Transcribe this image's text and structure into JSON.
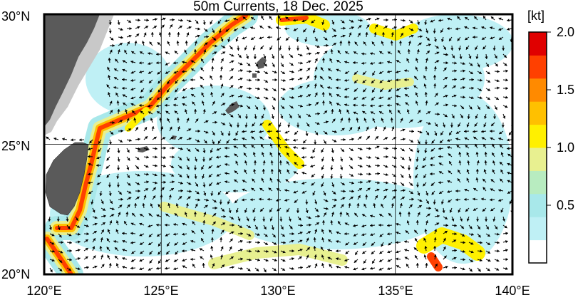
{
  "title": "50m Currents, 18 Dec. 2025",
  "map": {
    "lon_range": [
      120,
      140
    ],
    "lat_range": [
      20,
      30
    ],
    "lon_ticks": [
      "120°E",
      "125°E",
      "130°E",
      "135°E",
      "140°E"
    ],
    "lat_ticks": [
      "30°N",
      "25°N",
      "20°N"
    ],
    "grid": true,
    "land_color": "#5a5a5a",
    "coast_shelf_color": "#c8c8c8"
  },
  "colorbar": {
    "unit": "[kt]",
    "ticks": [
      "2.0",
      "1.5",
      "1.0",
      "0.5"
    ],
    "range": [
      0,
      2.0
    ],
    "colors": [
      "#ffffff",
      "#bff0f5",
      "#a8e8ea",
      "#b8ecc0",
      "#e8f090",
      "#fff000",
      "#ffc000",
      "#ff8a00",
      "#ff4000",
      "#e00000"
    ]
  }
}
